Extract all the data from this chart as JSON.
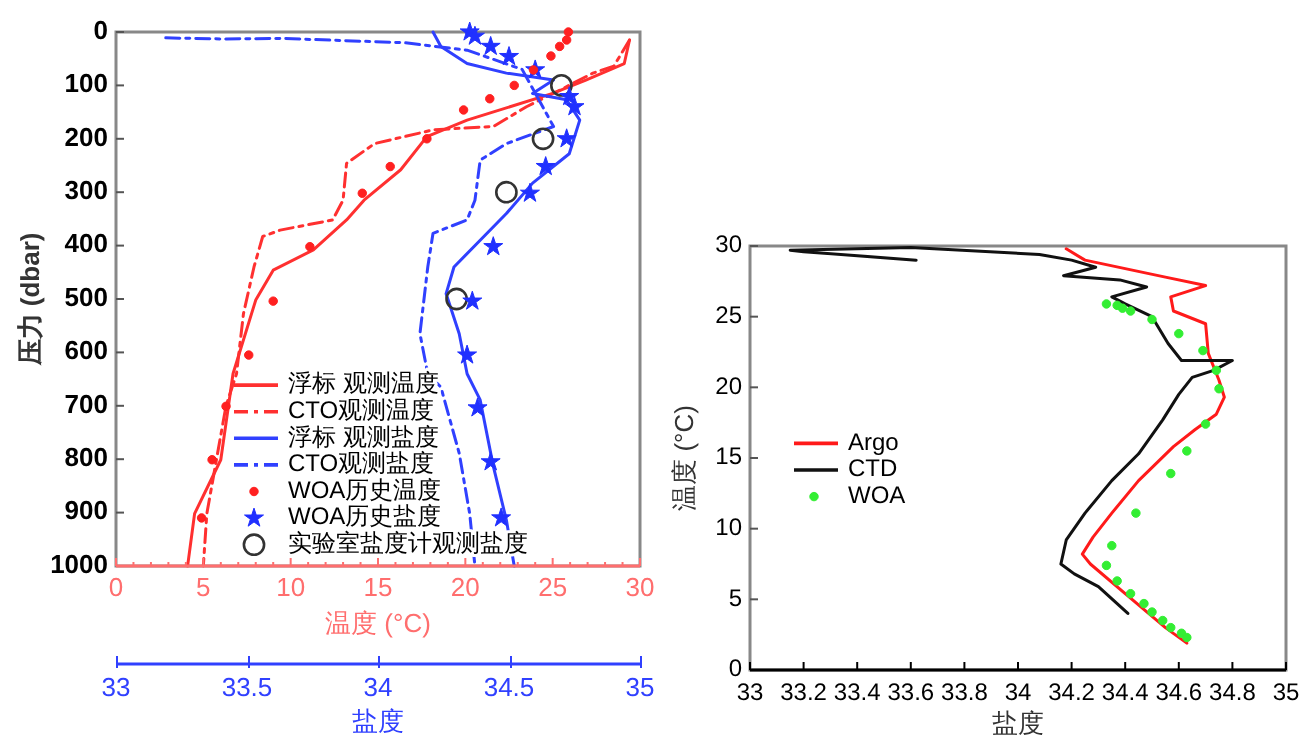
{
  "chart_data": [
    {
      "type": "line",
      "xlabel": "温度 (°C)",
      "x2label": "盐度",
      "ylabel": "压力 (dbar)",
      "xlim": [
        0,
        30
      ],
      "xticks": [
        0,
        {
          "value": 1,
          "label": null
        },
        {
          "value": 2,
          "label": null
        },
        {
          "value": 3,
          "label": null
        },
        {
          "value": 4,
          "label": null
        },
        5,
        {
          "value": 6,
          "label": null
        },
        {
          "value": 7,
          "label": null
        },
        {
          "value": 8,
          "label": null
        },
        {
          "value": 9,
          "label": null
        },
        10,
        {
          "value": 11,
          "label": null
        },
        {
          "value": 12,
          "label": null
        },
        {
          "value": 13,
          "label": null
        },
        {
          "value": 14,
          "label": null
        },
        15,
        {
          "value": 16,
          "label": null
        },
        {
          "value": 17,
          "label": null
        },
        {
          "value": 18,
          "label": null
        },
        {
          "value": 19,
          "label": null
        },
        20,
        {
          "value": 21,
          "label": null
        },
        {
          "value": 22,
          "label": null
        },
        {
          "value": 23,
          "label": null
        },
        {
          "value": 24,
          "label": null
        },
        25,
        {
          "value": 26,
          "label": null
        },
        {
          "value": 27,
          "label": null
        },
        {
          "value": 28,
          "label": null
        },
        {
          "value": 29,
          "label": null
        },
        30
      ],
      "x2lim": [
        33,
        35
      ],
      "x2ticks": [
        33,
        33.5,
        34,
        34.5,
        35
      ],
      "ylim": [
        1000,
        0
      ],
      "yticks": [
        0,
        100,
        200,
        300,
        400,
        500,
        600,
        700,
        800,
        900,
        1000
      ],
      "legend": "bottom left",
      "series": [
        {
          "name": "浮标 观测温度",
          "color": "#ff3030",
          "line_style": "solid",
          "x": [
            29.4,
            29.1,
            26.9,
            25,
            20.1,
            17.8,
            16.3,
            14.2,
            13.2,
            11.3,
            9,
            8,
            6.7,
            6,
            4.5,
            4.1
          ],
          "values": [
            15,
            59,
            90,
            115,
            165,
            196,
            258,
            315,
            352,
            408,
            446,
            502,
            640,
            801,
            902,
            1000
          ]
        },
        {
          "name": "CTO观测温度",
          "color": "#ff3030",
          "line_style": "dashed",
          "x": [
            29.4,
            28.5,
            27.3,
            25.4,
            23.5,
            21.6,
            18.2,
            14.8,
            13.2,
            13,
            12.4,
            9.4,
            8.4,
            7.9,
            7.3,
            6.9,
            6.3,
            5.2,
            5
          ],
          "values": [
            15,
            64,
            77,
            109,
            140,
            177,
            183,
            209,
            246,
            315,
            352,
            371,
            383,
            440,
            527,
            640,
            700,
            902,
            1000
          ]
        },
        {
          "name": "浮标 观测盐度",
          "color": "#3040ff",
          "line_style": "solid",
          "axis": "x2",
          "x": [
            34.21,
            34.24,
            34.34,
            34.49,
            34.67,
            34.59,
            34.72,
            34.77,
            34.73,
            34.59,
            34.49,
            34.39,
            34.29,
            34.26,
            34.31,
            34.34,
            34.39,
            34.44,
            34.49,
            34.52
          ],
          "values": [
            0,
            27,
            59,
            77,
            90,
            115,
            127,
            165,
            228,
            283,
            340,
            390,
            440,
            490,
            565,
            640,
            689,
            813,
            914,
            1000
          ]
        },
        {
          "name": "CTO观测盐度",
          "color": "#3040ff",
          "line_style": "dashed",
          "axis": "x2",
          "x": [
            33.19,
            33.4,
            33.63,
            34.1,
            34.34,
            34.55,
            34.67,
            34.49,
            34.39,
            34.37,
            34.34,
            34.21,
            34.19,
            34.16,
            34.19,
            34.24,
            34.31,
            34.35,
            34.37
          ],
          "values": [
            11,
            13,
            12,
            20,
            34,
            70,
            177,
            209,
            240,
            315,
            352,
            377,
            440,
            565,
            640,
            665,
            789,
            902,
            1000
          ]
        },
        {
          "name": "WOA历史温度",
          "color": "#ff2020",
          "type": "scatter",
          "marker": "circle",
          "x": [
            25.9,
            25.8,
            25.4,
            24.9,
            23.9,
            22.8,
            21.4,
            19.9,
            17.8,
            15.7,
            14.1,
            11.1,
            9,
            7.6,
            6.3,
            5.5,
            4.9
          ],
          "values": [
            0,
            15,
            27,
            45,
            71,
            100,
            125,
            146,
            200,
            252,
            302,
            402,
            504,
            605,
            701,
            801,
            910
          ]
        },
        {
          "name": "WOA历史盐度",
          "color": "#2030ff",
          "type": "scatter",
          "marker": "star",
          "axis": "x2",
          "x": [
            34.35,
            34.37,
            34.43,
            34.5,
            34.6,
            34.73,
            34.75,
            34.72,
            34.64,
            34.58,
            34.44,
            34.36,
            34.34,
            34.38,
            34.43,
            34.47
          ],
          "values": [
            0,
            8,
            27,
            46,
            71,
            121,
            140,
            200,
            252,
            302,
            402,
            504,
            605,
            704,
            805,
            910
          ]
        },
        {
          "name": "实验室盐度计观测盐度",
          "color": "#333333",
          "type": "scatter",
          "marker": "circle",
          "axis": "x2",
          "x": [
            34.7,
            34.63,
            34.49,
            34.3
          ],
          "values": [
            100,
            200,
            300,
            500
          ]
        }
      ]
    },
    {
      "type": "line",
      "xlabel": "盐度",
      "ylabel": "温度 (°C)",
      "xlim": [
        33,
        35
      ],
      "xticks": [
        33,
        33.2,
        33.4,
        33.6,
        33.8,
        34,
        34.2,
        34.4,
        34.6,
        34.8,
        35
      ],
      "ylim": [
        0,
        30
      ],
      "yticks": [
        0,
        5,
        10,
        15,
        20,
        25,
        30
      ],
      "legend": "left",
      "series": [
        {
          "name": "Argo",
          "color": "#ff1a1a",
          "x": [
            34.18,
            34.25,
            34.55,
            34.7,
            34.57,
            34.58,
            34.7,
            34.71,
            34.75,
            34.77,
            34.74,
            34.66,
            34.58,
            34.45,
            34.35,
            34.28,
            34.24,
            34.27,
            34.4,
            34.55,
            34.63
          ],
          "values": [
            29.8,
            29,
            27.8,
            27.2,
            26.4,
            25.4,
            24.5,
            22.4,
            20.5,
            19.3,
            18.1,
            17,
            15.8,
            13.4,
            11.1,
            9.4,
            8.2,
            7.5,
            5.4,
            3,
            1.9
          ]
        },
        {
          "name": "CTD",
          "color": "#111111",
          "x": [
            33.62,
            33.2,
            33.15,
            33.6,
            34.08,
            34.2,
            34.29,
            34.17,
            34.38,
            34.48,
            34.35,
            34.4,
            34.5,
            34.56,
            34.61,
            34.8,
            34.73,
            34.65,
            34.6,
            34.54,
            34.45,
            34.35,
            34.25,
            34.18,
            34.16,
            34.21,
            34.3,
            34.41
          ],
          "values": [
            29,
            29.6,
            29.7,
            29.9,
            29.4,
            29,
            28.5,
            27.9,
            27.6,
            27.1,
            26.4,
            25.9,
            25,
            23.1,
            21.9,
            21.9,
            21.2,
            20.7,
            19.5,
            17.7,
            15.3,
            13.4,
            11.1,
            9.2,
            7.5,
            6.8,
            5.9,
            4
          ]
        },
        {
          "name": "WOA",
          "color": "#33ee33",
          "type": "scatter",
          "marker": "circle",
          "x": [
            34.33,
            34.37,
            34.39,
            34.42,
            34.5,
            34.6,
            34.69,
            34.74,
            34.75,
            34.7,
            34.63,
            34.57,
            34.44,
            34.35,
            34.33,
            34.37,
            34.42,
            34.47,
            34.5,
            34.54,
            34.57,
            34.61,
            34.63
          ],
          "values": [
            25.9,
            25.8,
            25.6,
            25.4,
            24.8,
            23.8,
            22.6,
            21.2,
            19.9,
            17.4,
            15.5,
            13.9,
            11.1,
            8.8,
            7.4,
            6.3,
            5.4,
            4.7,
            4.1,
            3.5,
            3,
            2.6,
            2.3
          ]
        }
      ]
    }
  ]
}
